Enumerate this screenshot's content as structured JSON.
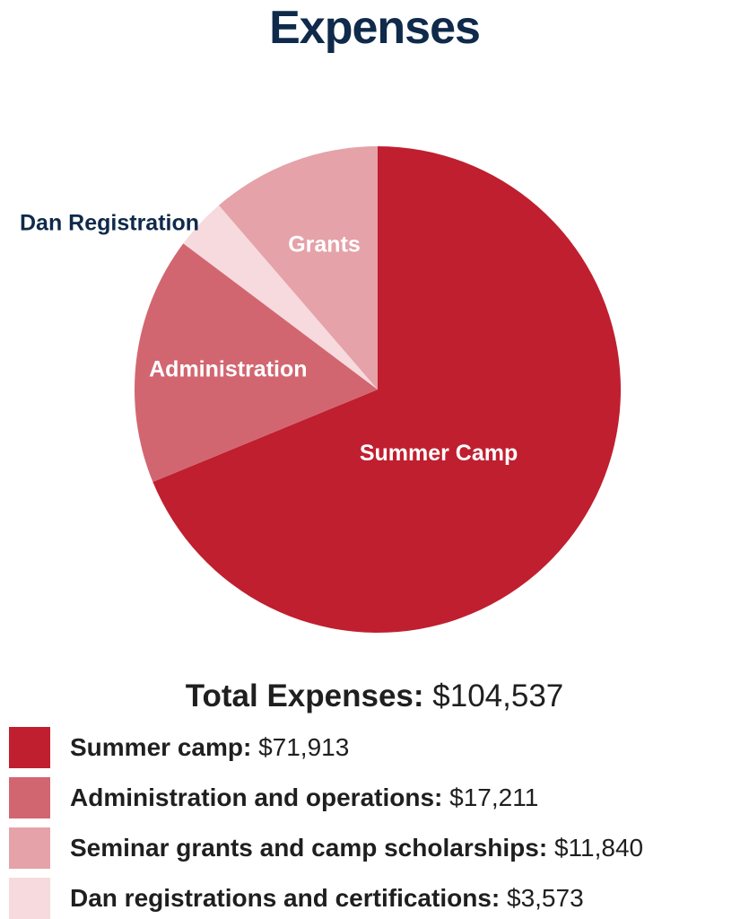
{
  "chart_data": {
    "type": "pie",
    "title": "Expenses",
    "slices": [
      {
        "label": "Summer Camp",
        "value": 71913,
        "color": "#c01f2f",
        "label_color": "#ffffff"
      },
      {
        "label": "Administration",
        "value": 17211,
        "color": "#d26670",
        "label_color": "#ffffff"
      },
      {
        "label": "Dan Registration",
        "value": 3573,
        "color": "#f6dadd",
        "label_color": "#0f2a4a"
      },
      {
        "label": "Grants",
        "value": 11840,
        "color": "#e5a2a8",
        "label_color": "#ffffff"
      }
    ],
    "total_label": "Total Expenses:",
    "total_value": "$104,537",
    "legend": [
      {
        "label": "Summer camp:",
        "value": "$71,913",
        "color": "#c01f2f"
      },
      {
        "label": "Administration and operations:",
        "value": "$17,211",
        "color": "#d26670"
      },
      {
        "label": "Seminar grants and camp scholarships:",
        "value": "$11,840",
        "color": "#e5a2a8"
      },
      {
        "label": "Dan registrations and certifications:",
        "value": "$3,573",
        "color": "#f6dadd"
      }
    ]
  }
}
